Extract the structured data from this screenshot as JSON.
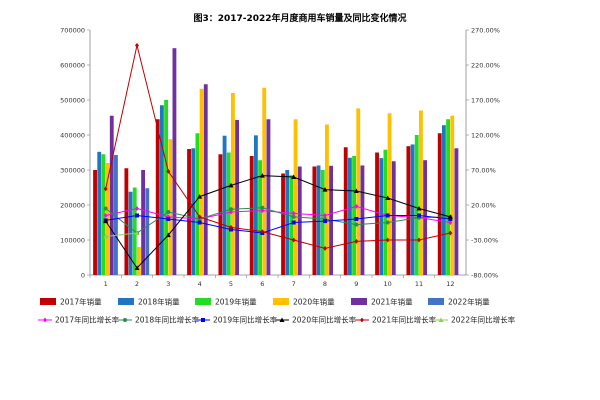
{
  "chart_data": {
    "type": "bar",
    "title": "图3：2017-2022年月度商用车销量及同比变化情况",
    "categories": [
      "1",
      "2",
      "3",
      "4",
      "5",
      "6",
      "7",
      "8",
      "9",
      "10",
      "11",
      "12"
    ],
    "y_left": {
      "ylim": [
        0,
        700000
      ],
      "ticks": [
        "0",
        "100000",
        "200000",
        "300000",
        "400000",
        "500000",
        "600000",
        "700000"
      ]
    },
    "y_right": {
      "ylim": [
        -80,
        270
      ],
      "ticks": [
        "-80.00%",
        "-30.00%",
        "20.00%",
        "70.00%",
        "120.00%",
        "170.00%",
        "220.00%",
        "270.00%"
      ]
    },
    "series": [
      {
        "name": "2017年销量",
        "kind": "bar",
        "color": "#C00000",
        "values": [
          300000,
          305000,
          445000,
          360000,
          345000,
          340000,
          290000,
          310000,
          365000,
          350000,
          368000,
          405000
        ]
      },
      {
        "name": "2018年销量",
        "kind": "bar",
        "color": "#1F77C4",
        "values": [
          352000,
          238000,
          485000,
          362000,
          398000,
          399000,
          300000,
          313000,
          335000,
          334000,
          373000,
          428000
        ]
      },
      {
        "name": "2019年销量",
        "kind": "bar",
        "color": "#22DD22",
        "values": [
          345000,
          250000,
          500000,
          405000,
          350000,
          328000,
          285000,
          300000,
          340000,
          358000,
          400000,
          445000
        ]
      },
      {
        "name": "2020年销量",
        "kind": "bar",
        "color": "#FFC000",
        "values": [
          320000,
          80000,
          388000,
          532000,
          520000,
          535000,
          445000,
          430000,
          476000,
          462000,
          470000,
          455000
        ]
      },
      {
        "name": "2021年销量",
        "kind": "bar",
        "color": "#7030A0",
        "values": [
          455000,
          300000,
          648000,
          545000,
          443000,
          445000,
          310000,
          312000,
          313000,
          325000,
          328000,
          362000
        ]
      },
      {
        "name": "2022年销量",
        "kind": "bar",
        "color": "#4472C4",
        "values": [
          343000,
          248000,
          null,
          null,
          null,
          null,
          null,
          null,
          null,
          null,
          null,
          null
        ]
      },
      {
        "name": "2017年同比增长率",
        "kind": "line",
        "color": "#FF00FF",
        "marker": "diamond",
        "values": [
          5,
          15,
          3,
          0,
          10,
          12,
          8,
          5,
          18,
          5,
          2,
          -5
        ]
      },
      {
        "name": "2018年同比增长率",
        "kind": "line",
        "color": "#2E8B57",
        "marker": "circle",
        "values": [
          15,
          -20,
          10,
          0,
          14,
          16,
          3,
          0,
          -8,
          -5,
          2,
          3
        ]
      },
      {
        "name": "2019年同比增长率",
        "kind": "line",
        "color": "#0000FF",
        "marker": "square",
        "values": [
          -2,
          5,
          0,
          -5,
          -15,
          -20,
          -5,
          -3,
          0,
          5,
          5,
          0
        ]
      },
      {
        "name": "2020年同比增长率",
        "kind": "line",
        "color": "#000000",
        "marker": "triangle",
        "values": [
          -3,
          -70,
          -23,
          32,
          48,
          62,
          60,
          42,
          40,
          30,
          15,
          3
        ]
      },
      {
        "name": "2021年同比增长率",
        "kind": "line",
        "color": "#C00000",
        "marker": "diamond",
        "values": [
          43,
          248,
          68,
          3,
          -12,
          -18,
          -30,
          -42,
          -32,
          -30,
          -30,
          -20
        ]
      },
      {
        "name": "2022年同比增长率",
        "kind": "line",
        "color": "#92D050",
        "marker": "triangle",
        "values": [
          -25,
          -20,
          null,
          null,
          null,
          null,
          null,
          null,
          null,
          null,
          null,
          null
        ]
      }
    ],
    "legend": {
      "placement": "bottom"
    },
    "grid": false
  }
}
